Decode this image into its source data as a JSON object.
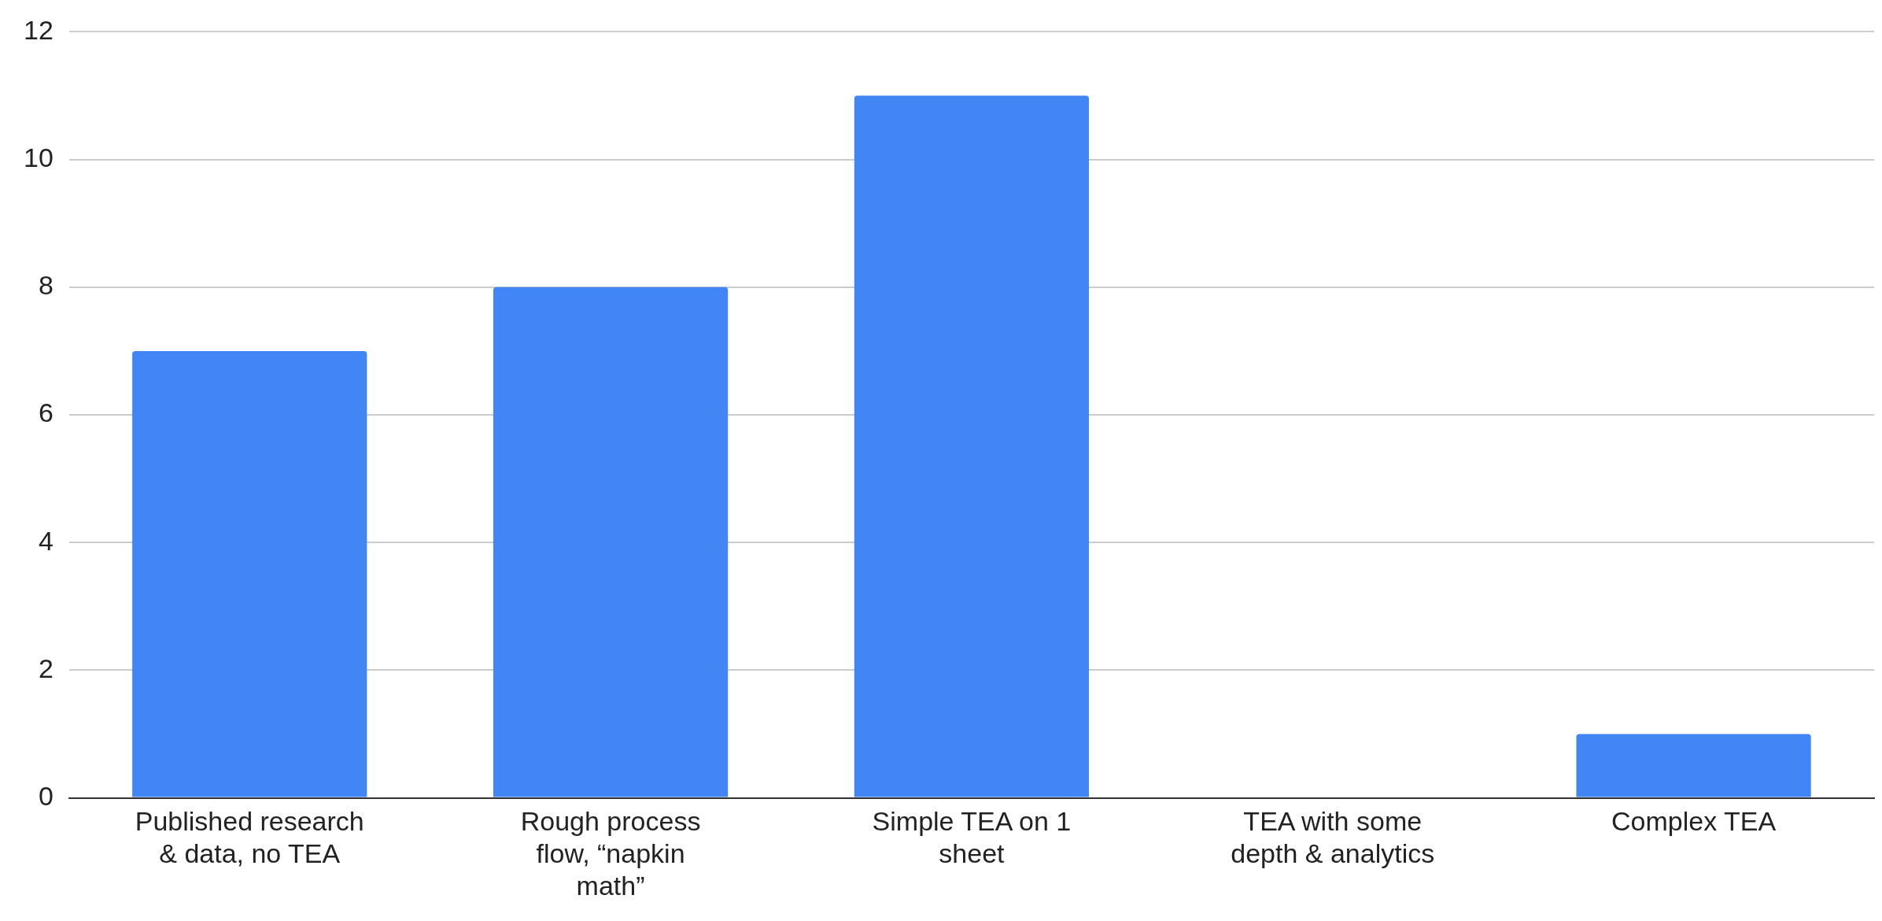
{
  "chart_data": {
    "type": "bar",
    "categories": [
      "Published research & data, no TEA",
      "Rough process flow, “napkin math”",
      "Simple TEA on 1 sheet",
      "TEA with some depth & analytics",
      "Complex TEA"
    ],
    "values": [
      7,
      8,
      11,
      0,
      1
    ],
    "color": "#4285f4",
    "ylim": [
      0,
      12
    ],
    "yticks": [
      0,
      2,
      4,
      6,
      8,
      10,
      12
    ],
    "grid": "y",
    "legend": false
  }
}
